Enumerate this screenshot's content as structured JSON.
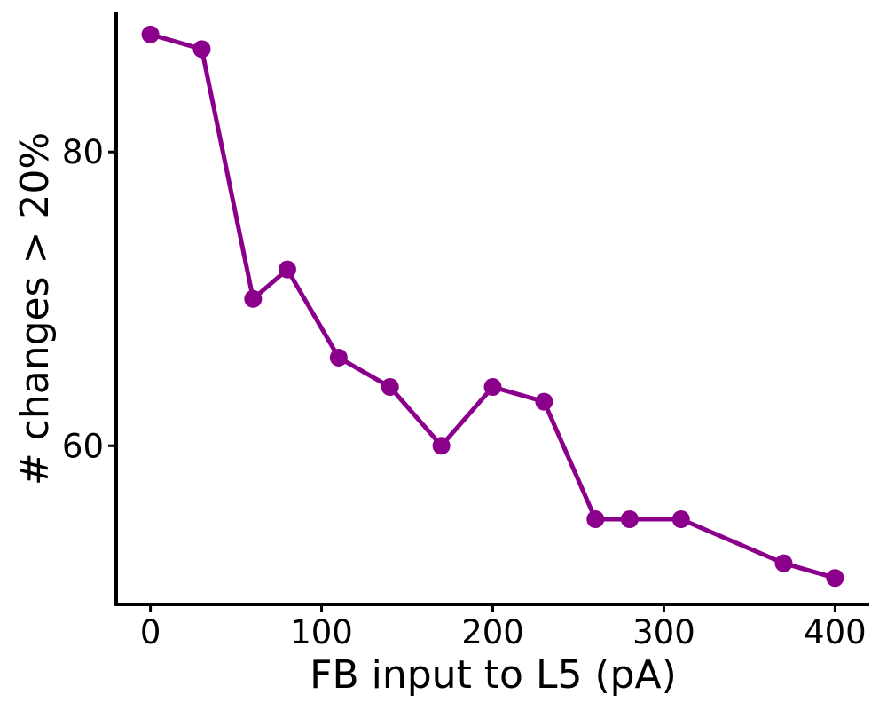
{
  "chart_data": {
    "type": "line",
    "title": "",
    "xlabel": "FB input to L5 (pA)",
    "ylabel": "# changes > 20%",
    "x": [
      0,
      30,
      60,
      80,
      110,
      140,
      170,
      200,
      230,
      260,
      280,
      310,
      370,
      400
    ],
    "series": [
      {
        "values": [
          88,
          87,
          70,
          72,
          66,
          64,
          60,
          64,
          63,
          55,
          55,
          55,
          52,
          51
        ]
      }
    ],
    "xlim": [
      -20,
      420
    ],
    "ylim": [
      49.2,
      89.5
    ],
    "xticks": [
      0,
      100,
      200,
      300,
      400
    ],
    "yticks": [
      60,
      80
    ],
    "xtick_labels": [
      "0",
      "100",
      "200",
      "300",
      "400"
    ],
    "ytick_labels": [
      "60",
      "80"
    ],
    "grid": false,
    "legend": "none",
    "color": "#8b008b"
  }
}
